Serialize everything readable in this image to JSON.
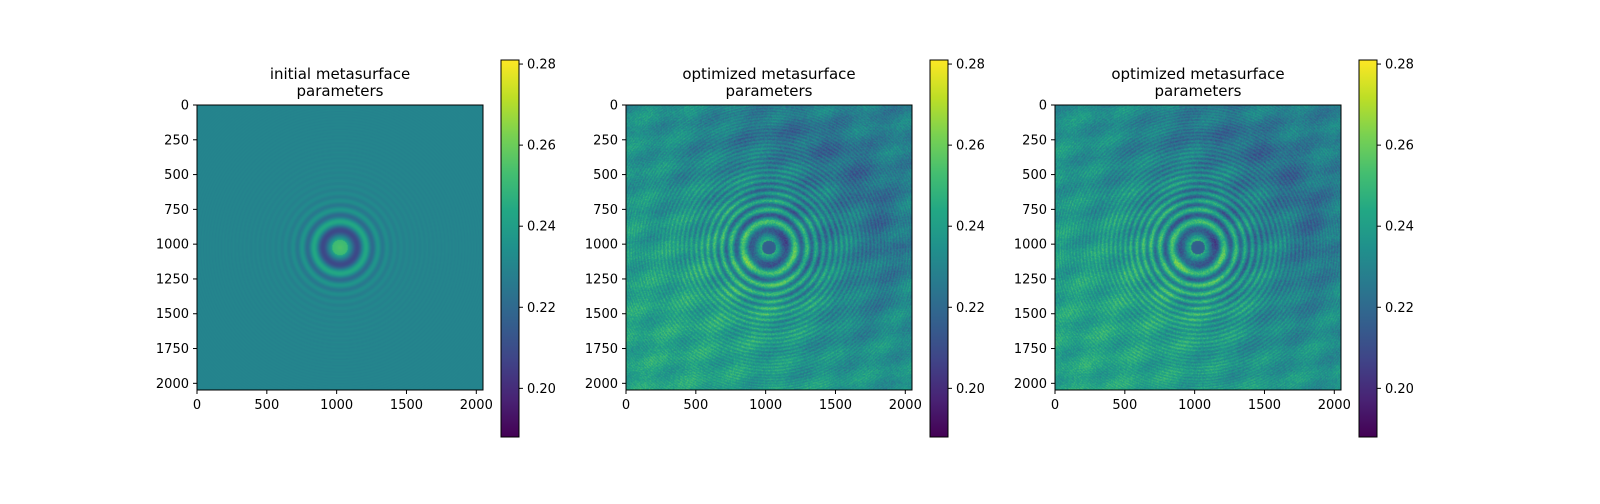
{
  "chart_data": [
    {
      "type": "heatmap",
      "title_lines": [
        "initial metasurface",
        "parameters"
      ],
      "colormap": "viridis",
      "image_kind": "initial",
      "x_range": [
        0,
        2048
      ],
      "y_range": [
        0,
        2048
      ],
      "y_inverted": true,
      "x_ticks": [
        "0",
        "500",
        "1000",
        "1500",
        "2000"
      ],
      "y_ticks": [
        "0",
        "250",
        "500",
        "750",
        "1000",
        "1250",
        "1500",
        "1750",
        "2000"
      ],
      "colorbar": {
        "min": 0.188,
        "max": 0.281,
        "ticks": [
          "0.20",
          "0.22",
          "0.24",
          "0.26",
          "0.28"
        ]
      },
      "pattern": {
        "center": [
          1024,
          1024
        ],
        "background_value": 0.23,
        "peak_value": 0.255
      }
    },
    {
      "type": "heatmap",
      "title_lines": [
        "optimized metasurface",
        "parameters"
      ],
      "colormap": "viridis",
      "image_kind": "optimized",
      "x_range": [
        0,
        2048
      ],
      "y_range": [
        0,
        2048
      ],
      "y_inverted": true,
      "x_ticks": [
        "0",
        "500",
        "1000",
        "1500",
        "2000"
      ],
      "y_ticks": [
        "0",
        "250",
        "500",
        "750",
        "1000",
        "1250",
        "1500",
        "1750",
        "2000"
      ],
      "colorbar": {
        "min": 0.188,
        "max": 0.281,
        "ticks": [
          "0.20",
          "0.22",
          "0.24",
          "0.26",
          "0.28"
        ]
      },
      "pattern": {
        "center": [
          1024,
          1024
        ],
        "background_value": 0.235,
        "center_value": 0.215
      }
    },
    {
      "type": "heatmap",
      "title_lines": [
        "optimized metasurface",
        "parameters"
      ],
      "colormap": "viridis",
      "image_kind": "optimized",
      "x_range": [
        0,
        2048
      ],
      "y_range": [
        0,
        2048
      ],
      "y_inverted": true,
      "x_ticks": [
        "0",
        "500",
        "1000",
        "1500",
        "2000"
      ],
      "y_ticks": [
        "0",
        "250",
        "500",
        "750",
        "1000",
        "1250",
        "1500",
        "1750",
        "2000"
      ],
      "colorbar": {
        "min": 0.188,
        "max": 0.281,
        "ticks": [
          "0.20",
          "0.22",
          "0.24",
          "0.26",
          "0.28"
        ]
      },
      "pattern": {
        "center": [
          1024,
          1024
        ],
        "background_value": 0.235,
        "center_value": 0.215
      }
    }
  ]
}
